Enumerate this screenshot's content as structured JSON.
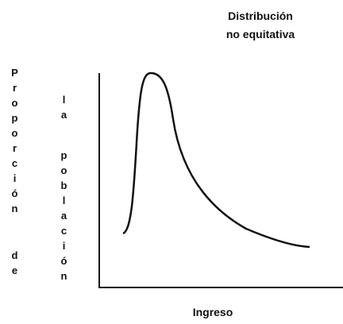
{
  "title": [
    "Distribución",
    "no equitativa"
  ],
  "y_label": [
    "Proporción",
    "de",
    "la",
    "población"
  ],
  "x_label": "Ingreso"
}
